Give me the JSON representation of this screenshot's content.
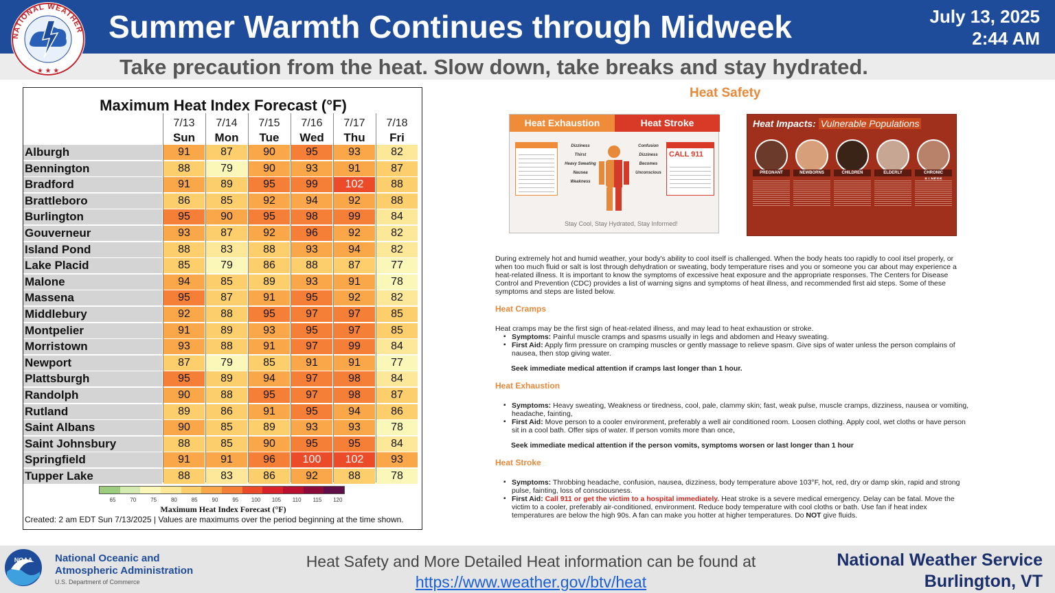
{
  "header": {
    "title": "Summer Warmth Continues through Midweek",
    "date": "July 13, 2025",
    "time": "2:44 AM",
    "subtitle": "Take precaution from the heat. Slow down, take breaks and stay hydrated.",
    "logo_text": "NATIONAL WEATHER SERVICE"
  },
  "table": {
    "title": "Maximum Heat Index Forecast (°F)",
    "days": [
      {
        "date": "7/13",
        "dow": "Sun"
      },
      {
        "date": "7/14",
        "dow": "Mon"
      },
      {
        "date": "7/15",
        "dow": "Tue"
      },
      {
        "date": "7/16",
        "dow": "Wed"
      },
      {
        "date": "7/17",
        "dow": "Thu"
      },
      {
        "date": "7/18",
        "dow": "Fri"
      }
    ],
    "rows": [
      {
        "city": "Alburgh",
        "values": [
          91,
          87,
          90,
          95,
          93,
          82
        ]
      },
      {
        "city": "Bennington",
        "values": [
          88,
          79,
          90,
          93,
          91,
          87
        ]
      },
      {
        "city": "Bradford",
        "values": [
          91,
          89,
          95,
          99,
          102,
          88
        ]
      },
      {
        "city": "Brattleboro",
        "values": [
          86,
          85,
          92,
          94,
          92,
          88
        ]
      },
      {
        "city": "Burlington",
        "values": [
          95,
          90,
          95,
          98,
          99,
          84
        ]
      },
      {
        "city": "Gouverneur",
        "values": [
          93,
          87,
          92,
          96,
          92,
          82
        ]
      },
      {
        "city": "Island Pond",
        "values": [
          88,
          83,
          88,
          93,
          94,
          82
        ]
      },
      {
        "city": "Lake Placid",
        "values": [
          85,
          79,
          86,
          88,
          87,
          77
        ]
      },
      {
        "city": "Malone",
        "values": [
          94,
          85,
          89,
          93,
          91,
          78
        ]
      },
      {
        "city": "Massena",
        "values": [
          95,
          87,
          91,
          95,
          92,
          82
        ]
      },
      {
        "city": "Middlebury",
        "values": [
          92,
          88,
          95,
          97,
          97,
          85
        ]
      },
      {
        "city": "Montpelier",
        "values": [
          91,
          89,
          93,
          95,
          97,
          85
        ]
      },
      {
        "city": "Morristown",
        "values": [
          93,
          88,
          91,
          97,
          99,
          84
        ]
      },
      {
        "city": "Newport",
        "values": [
          87,
          79,
          85,
          91,
          91,
          77
        ]
      },
      {
        "city": "Plattsburgh",
        "values": [
          95,
          89,
          94,
          97,
          98,
          84
        ]
      },
      {
        "city": "Randolph",
        "values": [
          90,
          88,
          95,
          97,
          98,
          87
        ]
      },
      {
        "city": "Rutland",
        "values": [
          89,
          86,
          91,
          95,
          94,
          86
        ]
      },
      {
        "city": "Saint Albans",
        "values": [
          90,
          85,
          89,
          93,
          93,
          78
        ]
      },
      {
        "city": "Saint Johnsbury",
        "values": [
          88,
          85,
          90,
          95,
          95,
          84
        ]
      },
      {
        "city": "Springfield",
        "values": [
          91,
          91,
          96,
          100,
          102,
          93
        ]
      },
      {
        "city": "Tupper Lake",
        "values": [
          88,
          83,
          86,
          92,
          88,
          78
        ]
      }
    ],
    "scale_ticks": [
      65,
      70,
      75,
      80,
      85,
      90,
      95,
      100,
      105,
      110,
      115,
      120
    ],
    "scale_colors": [
      "#9ccc7e",
      "#d4eab0",
      "#fbf7b8",
      "#fde89a",
      "#fccf6c",
      "#f9a749",
      "#f57f36",
      "#ec4b2a",
      "#d8212a",
      "#b8102e",
      "#8b0a3a",
      "#5e0d46"
    ],
    "scale_label": "Maximum Heat Index Forecast (°F)",
    "created": "Created: 2 am EDT Sun 7/13/2025  |  Values are maximums over the period beginning at the time shown."
  },
  "safety": {
    "title": "Heat Safety",
    "card1": {
      "exhaustion_label": "Heat Exhaustion",
      "stroke_label": "Heat Stroke",
      "call": "CALL 911",
      "footer": "Stay Cool, Stay Hydrated, Stay Informed!",
      "symptoms_left": [
        "Dizziness",
        "Thirst",
        "Heavy Sweating",
        "Nausea",
        "Weakness"
      ],
      "symptoms_right": [
        "Confusion",
        "Dizziness",
        "Becomes Unconscious"
      ]
    },
    "card2": {
      "title_a": "Heat Impacts:",
      "title_b": "Vulnerable Populations",
      "groups": [
        "PREGNANT",
        "NEWBORNS",
        "CHILDREN",
        "ELDERLY",
        "CHRONIC ILLNESS"
      ]
    },
    "intro": "During extremely hot and humid weather, your body's ability to cool itself is challenged. When the body heats too rapidly to cool itsel properly, or when too much fluid or salt is lost through dehydration or sweating, body temperature rises and you or someone you car about may experience a heat-related illness. It is important to know the symptoms of excessive heat exposure and the appropriate responses. The Centers for Disease Control and Prevention (CDC) provides a list of warning signs and symptoms of heat illness, and recommended first aid steps. Some of these symptoms and steps are listed below.",
    "cramps": {
      "heading": "Heat Cramps",
      "intro": "Heat cramps may be the first sign of heat-related illness, and may lead to heat exhaustion or stroke.",
      "sym_label": "Symptoms:",
      "symptoms": "Painful muscle cramps and spasms usually in legs and abdomen and Heavy sweating.",
      "aid_label": "First Aid:",
      "aid": "Apply firm pressure on cramping muscles or gently massage to relieve spasm. Give sips of water unless the person complains of nausea, then stop giving water.",
      "seek": "Seek immediate medical attention if cramps last longer than 1 hour."
    },
    "exhaustion": {
      "heading": "Heat Exhaustion",
      "sym_label": "Symptoms:",
      "symptoms": "Heavy sweating, Weakness or tiredness, cool, pale, clammy skin; fast, weak pulse, muscle cramps, dizziness, nausea or vomiting, headache, fainting,",
      "aid_label": "First Aid:",
      "aid": "Move person to a cooler environment, preferably a well air conditioned room. Loosen clothing. Apply cool, wet cloths or have person sit in a cool bath. Offer sips of water. If person vomits more than once,",
      "seek": "Seek immediate medical attention if the person vomits, symptoms worsen or last longer than 1 hour"
    },
    "stroke": {
      "heading": "Heat Stroke",
      "sym_label": "Symptoms:",
      "symptoms": "Throbbing headache, confusion, nausea, dizziness, body temperature above 103°F, hot, red, dry or damp skin, rapid and strong pulse, fainting, loss of consciousness.",
      "aid_label": "First Aid:",
      "aid_red": "Call 911 or get the victim to a hospital immediately.",
      "aid_a": "Heat stroke is a severe medical emergency. Delay can be fatal. Move the victim to a cooler, preferably air-conditioned, environment. Reduce body temperature with cool cloths or bath. Use fan if heat index temperatures are below the high 90s. A fan can make you hotter at higher temperatures. Do",
      "aid_not": "NOT",
      "aid_b": "give fluids."
    }
  },
  "footer": {
    "noaa_line1": "National Oceanic and",
    "noaa_line2": "Atmospheric Administration",
    "noaa_dept": "U.S. Department of Commerce",
    "message": "Heat Safety and More Detailed Heat information can be found at",
    "link": "https://www.weather.gov/btv/heat",
    "office_line1": "National Weather Service",
    "office_line2": "Burlington, VT"
  }
}
